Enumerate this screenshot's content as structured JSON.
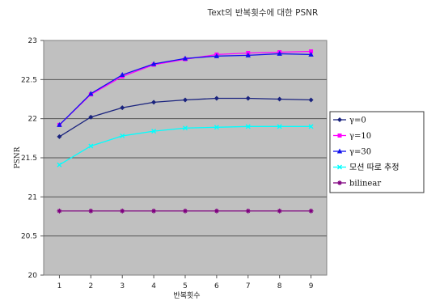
{
  "chart_data": {
    "type": "line",
    "title": "Text의 반복횟수에 대한 PSNR",
    "xlabel": "반복횟수",
    "ylabel": "PSNR",
    "x": [
      1,
      2,
      3,
      4,
      5,
      6,
      7,
      8,
      9
    ],
    "xlim": [
      0.5,
      9.5
    ],
    "ylim": [
      20,
      23
    ],
    "yticks": [
      "20",
      "20.5",
      "21",
      "21.5",
      "22",
      "22.5",
      "23"
    ],
    "ytick_values": [
      20,
      20.5,
      21,
      21.5,
      22,
      22.5,
      23
    ],
    "grid": true,
    "plot_background": "#c0c0c0",
    "legend_position": "right",
    "series": [
      {
        "name": "γ=0",
        "color": "#1a237e",
        "marker": "diamond",
        "values": [
          21.77,
          22.02,
          22.14,
          22.21,
          22.24,
          22.26,
          22.26,
          22.25,
          22.24
        ]
      },
      {
        "name": "γ=10",
        "color": "#ff00ff",
        "marker": "square",
        "values": [
          21.92,
          22.31,
          22.54,
          22.69,
          22.76,
          22.82,
          22.84,
          22.85,
          22.86
        ]
      },
      {
        "name": "γ=30",
        "color": "#1111ee",
        "marker": "triangle",
        "values": [
          21.92,
          22.32,
          22.56,
          22.7,
          22.77,
          22.8,
          22.81,
          22.83,
          22.82
        ]
      },
      {
        "name": "모션 따로 추정",
        "color": "#00ffff",
        "marker": "x",
        "values": [
          21.41,
          21.65,
          21.78,
          21.84,
          21.88,
          21.89,
          21.9,
          21.9,
          21.9
        ]
      },
      {
        "name": "bilinear",
        "color": "#800080",
        "marker": "star",
        "values": [
          20.82,
          20.82,
          20.82,
          20.82,
          20.82,
          20.82,
          20.82,
          20.82,
          20.82
        ]
      }
    ]
  }
}
